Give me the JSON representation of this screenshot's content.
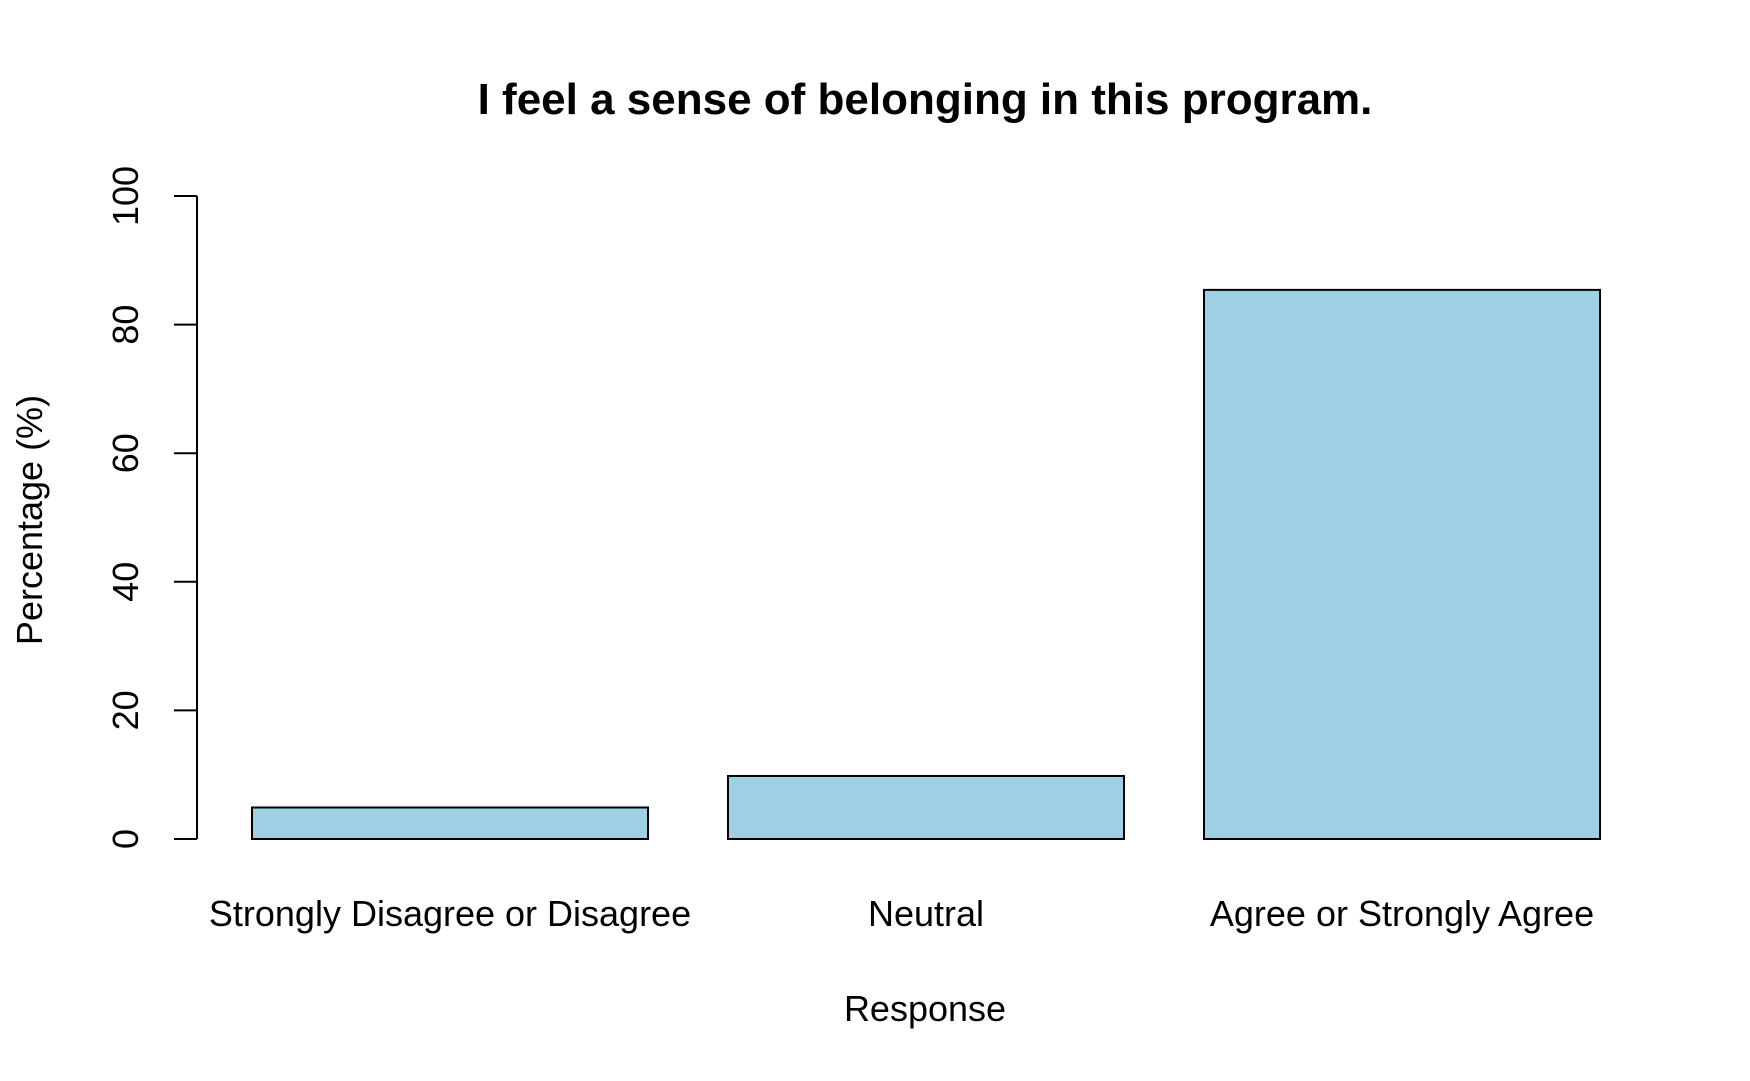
{
  "chart_data": {
    "type": "bar",
    "title": "I feel a sense of belonging in this program.",
    "xlabel": "Response",
    "ylabel": "Percentage (%)",
    "categories": [
      "Strongly Disagree or Disagree",
      "Neutral",
      "Agree or Strongly Agree"
    ],
    "values": [
      4.9,
      9.8,
      85.4
    ],
    "ylim": [
      0,
      100
    ],
    "yticks": [
      0,
      20,
      40,
      60,
      80,
      100
    ],
    "bar_color": "#9ecfe2",
    "bar_border_color": "#000000",
    "grid": false,
    "legend": "none"
  }
}
